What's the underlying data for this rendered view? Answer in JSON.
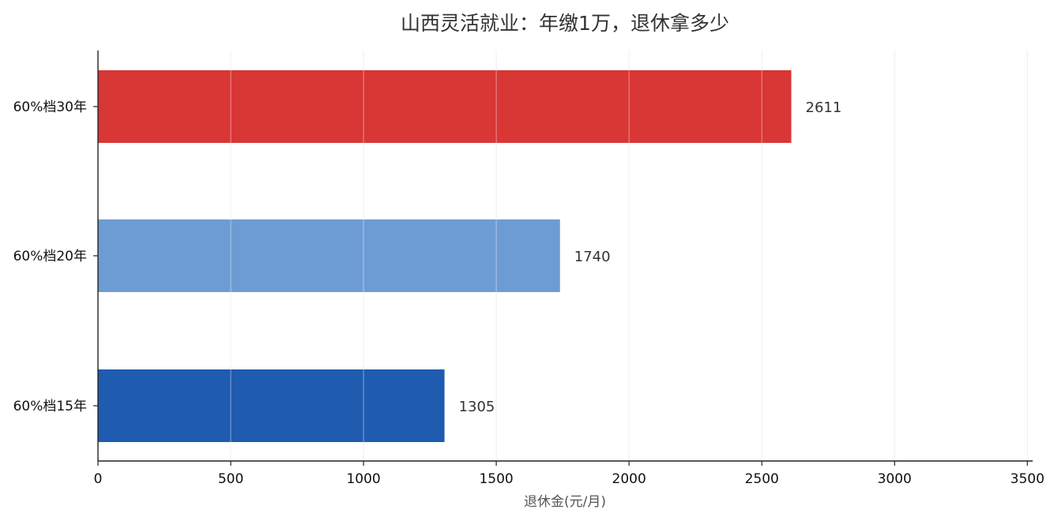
{
  "chart_data": {
    "type": "bar",
    "orientation": "horizontal",
    "title": "山西灵活就业：年缴1万，退休拿多少",
    "categories": [
      "60%档30年",
      "60%档20年",
      "60%档15年"
    ],
    "values": [
      2611,
      1740,
      1305
    ],
    "data_labels": [
      "2611",
      "1740",
      "1305"
    ],
    "colors": [
      "#d93636",
      "#6d9cd4",
      "#1f5cb0"
    ],
    "xlabel": "退休金(元/月)",
    "ylabel": "",
    "xlim": [
      0,
      3520
    ],
    "xticks": [
      0,
      500,
      1000,
      1500,
      2000,
      2500,
      3000,
      3500
    ],
    "xtick_labels": [
      "0",
      "500",
      "1000",
      "1500",
      "2000",
      "2500",
      "3000",
      "3500"
    ],
    "grid": "vertical",
    "legend": "none"
  }
}
